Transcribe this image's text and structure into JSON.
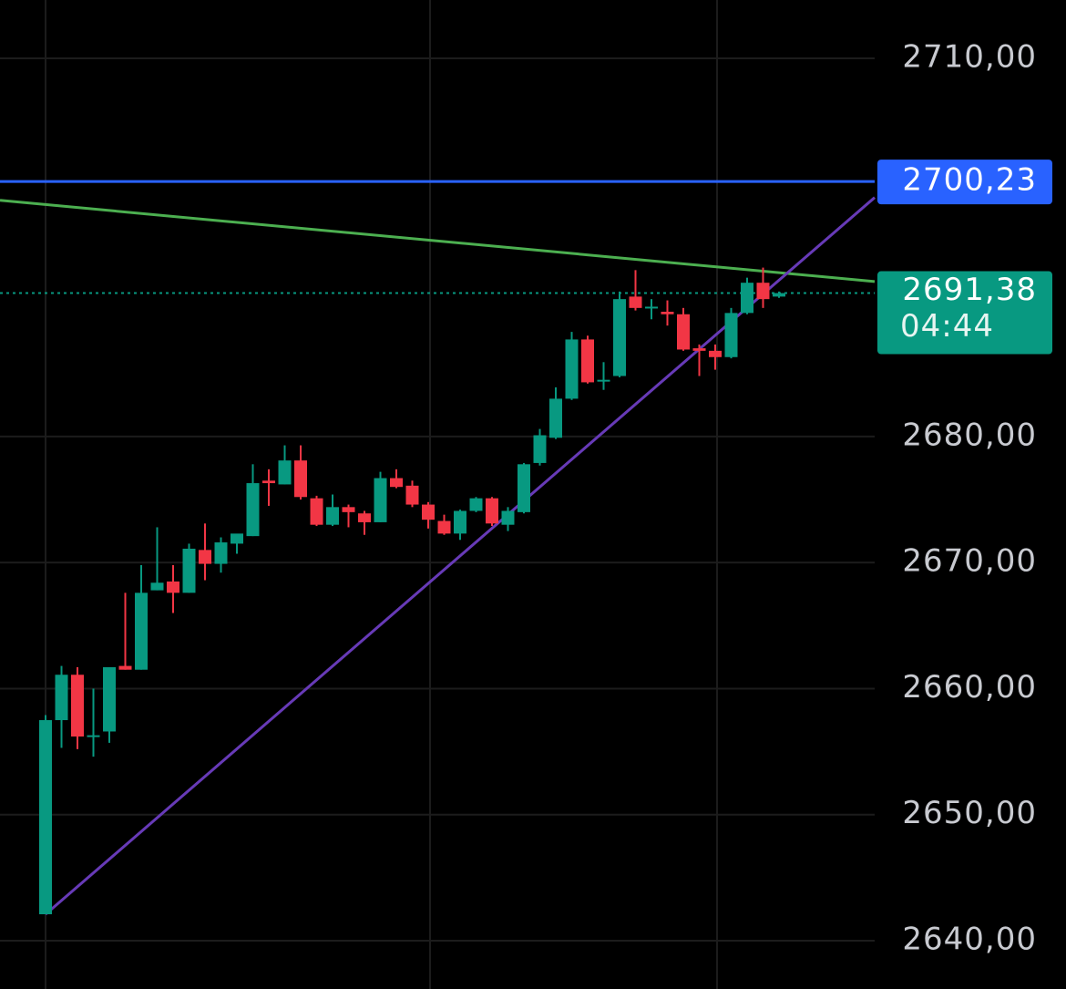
{
  "chart_data": {
    "type": "candlestick",
    "up_color": "#089981",
    "down_color": "#f23645",
    "grid": true,
    "ylim": [
      2636.17,
      2714.63
    ],
    "yticks": [
      {
        "value": 2710,
        "label": "2710,00"
      },
      {
        "value": 2680,
        "label": "2680,00"
      },
      {
        "value": 2670,
        "label": "2670,00"
      },
      {
        "value": 2660,
        "label": "2660,00"
      },
      {
        "value": 2650,
        "label": "2650,00"
      },
      {
        "value": 2640,
        "label": "2640,00"
      }
    ],
    "open": [
      2642.1,
      2657.5,
      2661.1,
      2656.2,
      2656.6,
      2661.8,
      2661.5,
      2667.8,
      2668.5,
      2667.6,
      2671.0,
      2669.9,
      2671.5,
      2672.1,
      2676.5,
      2676.2,
      2678.1,
      2675.1,
      2673.0,
      2674.4,
      2673.9,
      2673.2,
      2676.7,
      2676.1,
      2674.6,
      2673.3,
      2672.3,
      2674.1,
      2675.1,
      2673.0,
      2674.0,
      2677.9,
      2679.9,
      2683.0,
      2687.7,
      2684.4,
      2684.8,
      2691.1,
      2690.2,
      2689.9,
      2689.7,
      2687.0,
      2686.8,
      2686.3,
      2689.8,
      2692.2,
      2691.1
    ],
    "high": [
      2657.9,
      2661.8,
      2661.7,
      2660.0,
      2661.7,
      2667.6,
      2669.8,
      2672.8,
      2669.8,
      2671.5,
      2673.1,
      2672.0,
      2671.7,
      2677.8,
      2677.4,
      2679.3,
      2679.3,
      2675.3,
      2675.4,
      2674.6,
      2674.1,
      2677.2,
      2677.4,
      2676.5,
      2674.8,
      2673.8,
      2674.2,
      2675.2,
      2675.2,
      2674.4,
      2677.9,
      2680.6,
      2683.9,
      2688.3,
      2688.0,
      2685.9,
      2691.5,
      2693.2,
      2690.9,
      2690.8,
      2690.2,
      2687.3,
      2687.3,
      2690.2,
      2692.6,
      2693.4,
      2691.5
    ],
    "low": [
      2642.1,
      2655.3,
      2655.2,
      2654.6,
      2655.7,
      2661.5,
      2661.5,
      2667.8,
      2666.0,
      2667.6,
      2668.6,
      2669.2,
      2670.7,
      2672.1,
      2674.5,
      2676.2,
      2675.0,
      2672.9,
      2672.9,
      2672.8,
      2672.2,
      2673.2,
      2675.9,
      2674.4,
      2672.7,
      2672.2,
      2671.8,
      2674.0,
      2672.9,
      2672.5,
      2673.9,
      2677.7,
      2679.8,
      2682.9,
      2684.2,
      2683.7,
      2684.7,
      2690.0,
      2689.3,
      2688.8,
      2686.8,
      2684.8,
      2685.3,
      2686.2,
      2689.7,
      2690.2,
      2691.0
    ],
    "close": [
      2657.5,
      2661.1,
      2656.2,
      2656.3,
      2661.7,
      2661.5,
      2667.6,
      2668.4,
      2667.6,
      2671.1,
      2669.9,
      2671.6,
      2672.3,
      2676.3,
      2676.3,
      2678.1,
      2675.2,
      2673.0,
      2674.4,
      2674.0,
      2673.2,
      2676.7,
      2676.0,
      2674.6,
      2673.4,
      2672.3,
      2674.1,
      2675.1,
      2673.1,
      2674.1,
      2677.8,
      2680.1,
      2683.0,
      2687.7,
      2684.3,
      2684.5,
      2690.9,
      2690.2,
      2690.3,
      2689.7,
      2686.9,
      2686.8,
      2686.3,
      2689.8,
      2692.2,
      2690.9,
      2691.38
    ],
    "horizontal_line": {
      "value": 2700.23,
      "label": "2700,23",
      "color": "#2962ff"
    },
    "last_price": {
      "value": 2691.38,
      "label": "2691,38",
      "countdown": "04:44",
      "color": "#089981"
    },
    "trendlines": [
      {
        "color": "#4caf50",
        "x": [
          0,
          46
        ],
        "values": [
          2698.4,
          2693.0
        ]
      },
      {
        "color": "#673ab7",
        "x": [
          0,
          46
        ],
        "values": [
          2642.1,
          2692.4
        ]
      }
    ]
  }
}
